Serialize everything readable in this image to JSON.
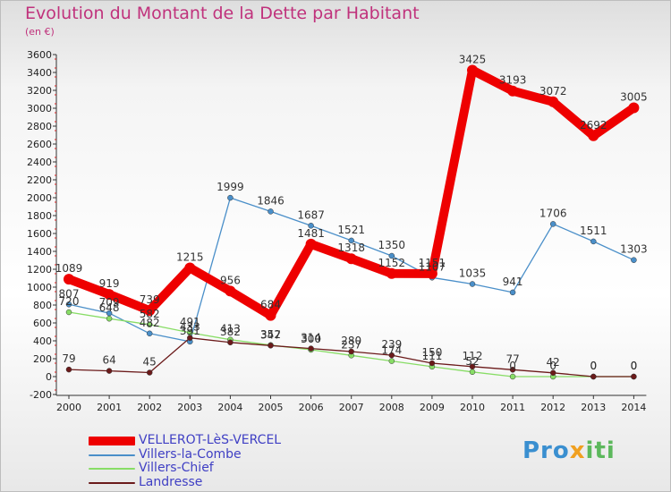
{
  "title": "Evolution du Montant de la Dette par Habitant",
  "subtitle": "(en €)",
  "logo": "Proxiti",
  "chart_data": {
    "type": "line",
    "x": [
      "2000",
      "2001",
      "2002",
      "2003",
      "2004",
      "2005",
      "2006",
      "2007",
      "2008",
      "2009",
      "2010",
      "2011",
      "2012",
      "2013",
      "2014"
    ],
    "ylim": [
      -200,
      3600
    ],
    "yticks": [
      -200,
      0,
      200,
      400,
      600,
      800,
      1000,
      1200,
      1400,
      1600,
      1800,
      2000,
      2200,
      2400,
      2600,
      2800,
      3000,
      3200,
      3400,
      3600
    ],
    "grid": false,
    "legend_position": "bottom-left",
    "series": [
      {
        "name": "VELLEROT-LèS-VERCEL",
        "color": "#ee0000",
        "values": [
          1089,
          919,
          739,
          1215,
          956,
          684,
          1481,
          1318,
          1152,
          1151,
          3425,
          3193,
          3072,
          2692,
          3005
        ]
      },
      {
        "name": "Villers-la-Combe",
        "color": "#4a8fc9",
        "values": [
          807,
          709,
          482,
          391,
          1999,
          1846,
          1687,
          1521,
          1350,
          1107,
          1035,
          941,
          1706,
          1511,
          1303
        ]
      },
      {
        "name": "Villers-Chief",
        "color": "#88dd66",
        "values": [
          720,
          648,
          582,
          491,
          413,
          352,
          300,
          237,
          174,
          111,
          52,
          0,
          0,
          0,
          0
        ]
      },
      {
        "name": "Landresse",
        "color": "#6b1a1a",
        "values": [
          79,
          64,
          45,
          433,
          382,
          347,
          314,
          280,
          239,
          150,
          112,
          77,
          42,
          0,
          0
        ]
      }
    ]
  }
}
